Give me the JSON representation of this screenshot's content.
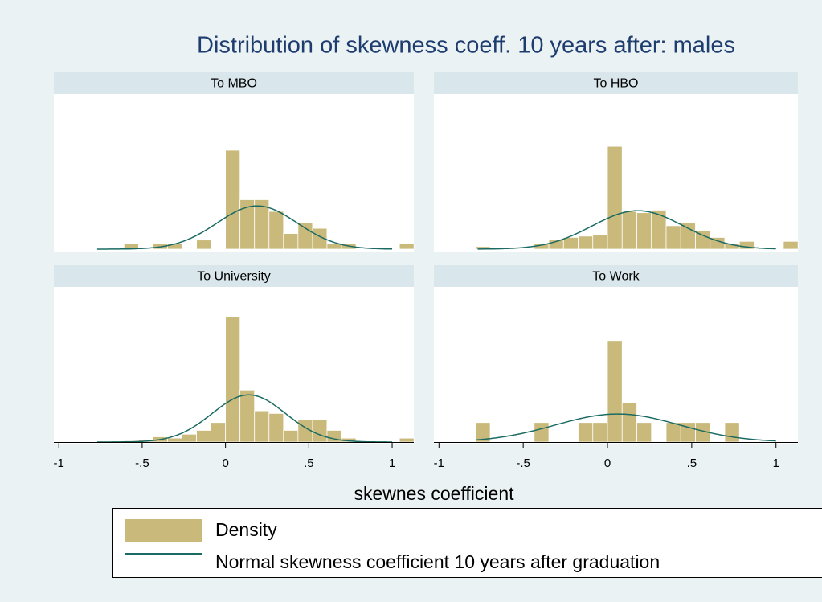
{
  "title": "Distribution of skewness coeff. 10 years after: males",
  "xlabel": "skewnes coefficient",
  "legend": [
    "Density",
    "Normal skewness coefficient 10 years after graduation"
  ],
  "bar_color": "#c9b97a",
  "curve_color": "#1b6b63",
  "chart_data": [
    {
      "type": "histogram",
      "title": "To MBO",
      "bins": [
        -0.783,
        -0.696,
        -0.609,
        -0.522,
        -0.435,
        -0.348,
        -0.261,
        -0.174,
        -0.087,
        0,
        0.087,
        0.174,
        0.261,
        0.348,
        0.435,
        0.522,
        0.609,
        0.696,
        0.783,
        0.87,
        0.957,
        1.044,
        1.131
      ],
      "counts": [
        0,
        0,
        0.2,
        0,
        0.2,
        0.2,
        0,
        0.35,
        0,
        3.8,
        1.9,
        1.9,
        1.45,
        0.6,
        1.0,
        0.8,
        0.2,
        0.2,
        0,
        0,
        0,
        0.2
      ],
      "normal": {
        "mean": 0.19,
        "sd": 0.24,
        "range": [
          -0.77,
          1.0
        ]
      },
      "xlim": [
        -1.03,
        1.13
      ],
      "ylim": [
        0,
        5.9
      ]
    },
    {
      "type": "histogram",
      "title": "To HBO",
      "bins": [
        -0.783,
        -0.696,
        -0.609,
        -0.522,
        -0.435,
        -0.348,
        -0.261,
        -0.174,
        -0.087,
        0,
        0.087,
        0.174,
        0.261,
        0.348,
        0.435,
        0.522,
        0.609,
        0.696,
        0.783,
        0.87,
        0.957,
        1.044,
        1.131
      ],
      "counts": [
        0.1,
        0,
        0,
        0,
        0.2,
        0.35,
        0.45,
        0.5,
        0.55,
        3.95,
        1.45,
        1.4,
        1.5,
        0.9,
        1.0,
        0.7,
        0.45,
        0.2,
        0.3,
        0,
        0,
        0.3
      ],
      "normal": {
        "mean": 0.18,
        "sd": 0.27,
        "range": [
          -0.77,
          1.0
        ]
      },
      "xlim": [
        -1.03,
        1.13
      ],
      "ylim": [
        0,
        5.9
      ]
    },
    {
      "type": "histogram",
      "title": "To University",
      "bins": [
        -0.783,
        -0.696,
        -0.609,
        -0.522,
        -0.435,
        -0.348,
        -0.261,
        -0.174,
        -0.087,
        0,
        0.087,
        0.174,
        0.261,
        0.348,
        0.435,
        0.522,
        0.609,
        0.696,
        0.783,
        0.87,
        0.957,
        1.044,
        1.131
      ],
      "counts": [
        0,
        0,
        0.05,
        0.1,
        0.2,
        0.15,
        0.3,
        0.45,
        0.75,
        4.8,
        2.0,
        1.2,
        1.1,
        0.45,
        0.85,
        0.85,
        0.45,
        0.15,
        0,
        0,
        0,
        0.15
      ],
      "normal": {
        "mean": 0.14,
        "sd": 0.22,
        "range": [
          -0.77,
          1.0
        ]
      },
      "xlim": [
        -1.03,
        1.13
      ],
      "ylim": [
        0,
        5.9
      ],
      "xticks": [
        -1,
        {
          "value": -0.5,
          "label": "-.5"
        },
        0,
        {
          "value": 0.5,
          "label": ".5"
        },
        1
      ]
    },
    {
      "type": "histogram",
      "title": "To Work",
      "bins": [
        -0.783,
        -0.696,
        -0.609,
        -0.522,
        -0.435,
        -0.348,
        -0.261,
        -0.174,
        -0.087,
        0,
        0.087,
        0.174,
        0.261,
        0.348,
        0.435,
        0.522,
        0.609,
        0.696,
        0.783,
        0.87,
        0.957,
        1.044,
        1.131
      ],
      "counts": [
        0.75,
        0,
        0,
        0,
        0.75,
        0,
        0,
        0.75,
        0.75,
        3.9,
        1.5,
        0.75,
        0,
        0.75,
        0.75,
        0.75,
        0,
        0.75,
        0,
        0,
        0,
        0
      ],
      "normal": {
        "mean": 0.06,
        "sd": 0.37,
        "range": [
          -0.78,
          1.0
        ]
      },
      "xlim": [
        -1.03,
        1.13
      ],
      "ylim": [
        0,
        5.9
      ],
      "xticks": [
        -1,
        {
          "value": -0.5,
          "label": "-.5"
        },
        0,
        {
          "value": 0.5,
          "label": ".5"
        },
        1
      ]
    }
  ]
}
